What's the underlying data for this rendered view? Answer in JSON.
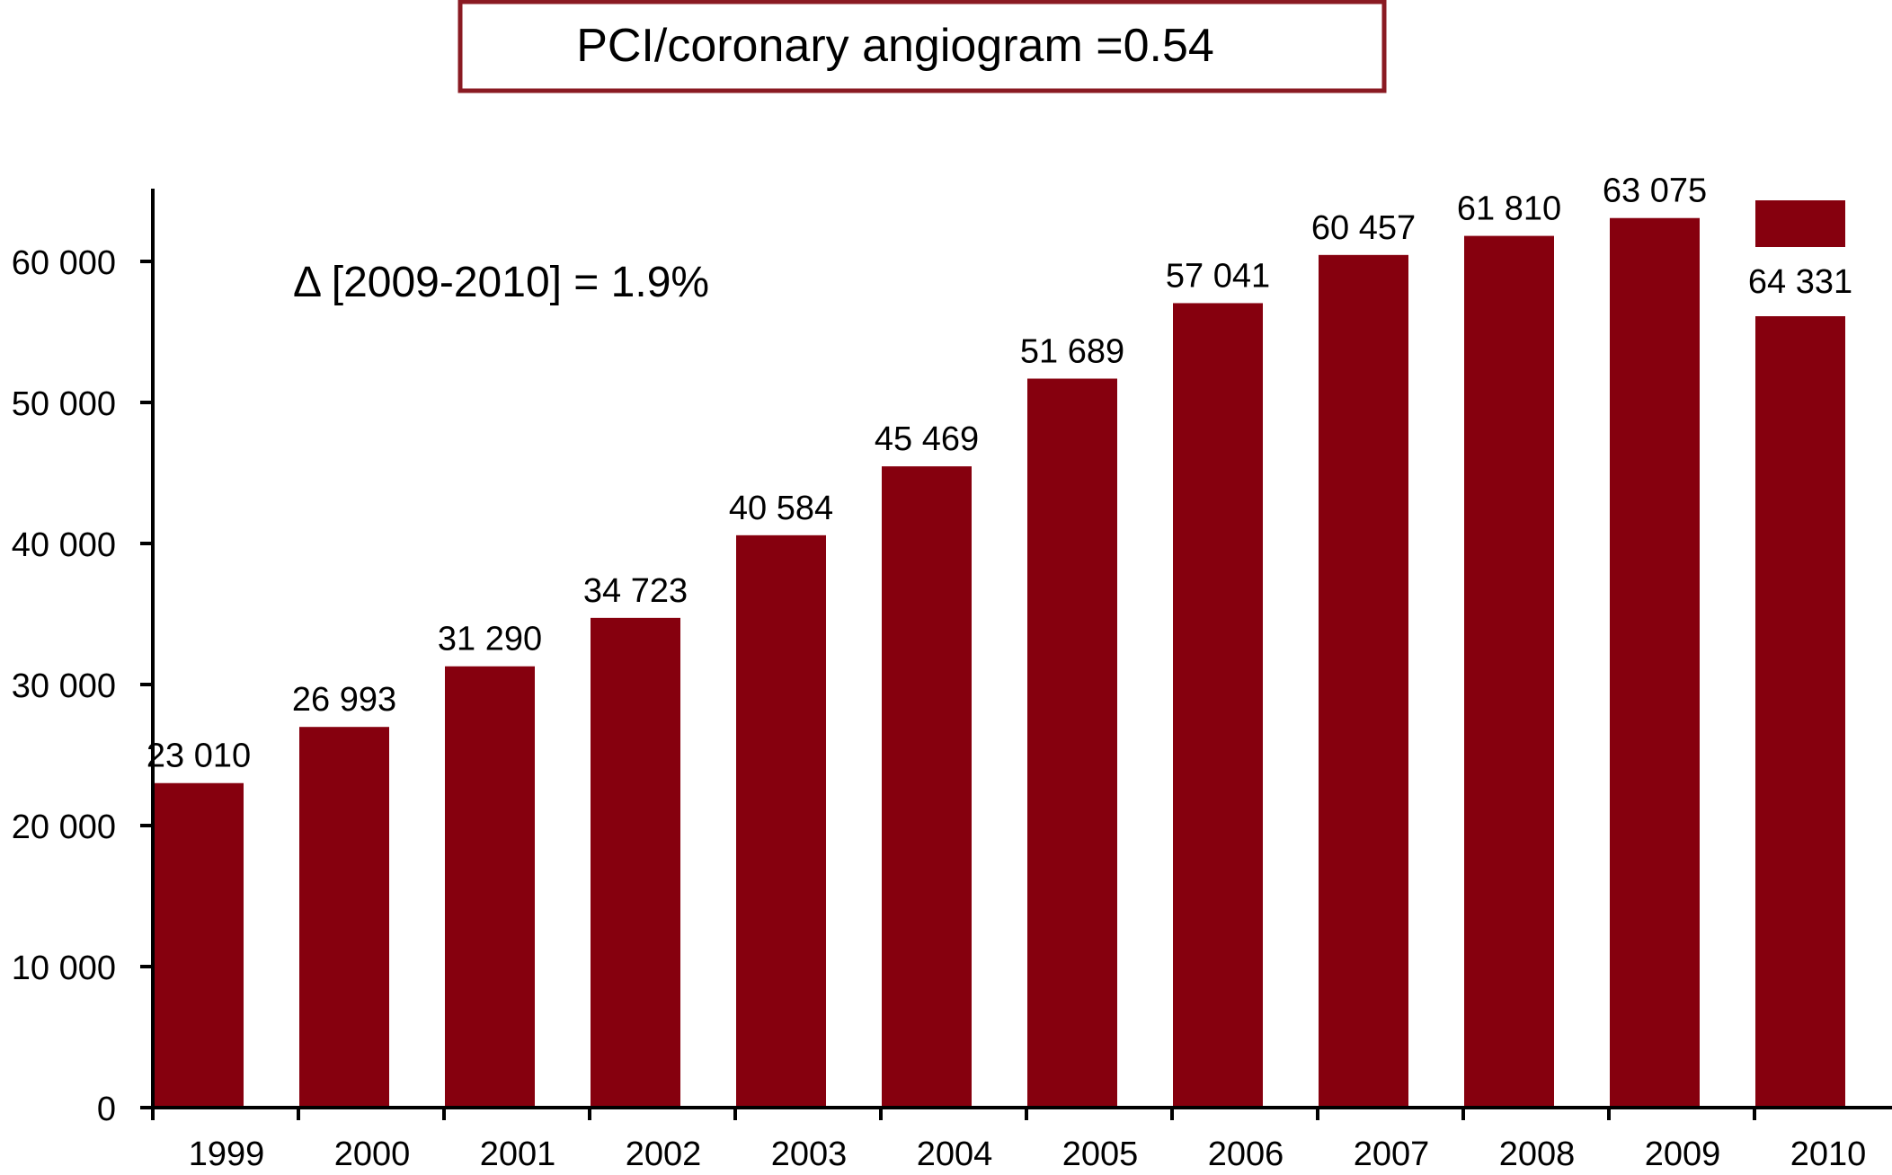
{
  "chart_data": {
    "type": "bar",
    "title": "PCI/coronary angiogram =0.54",
    "annotation": "Δ [2009-2010] = 1.9%",
    "xlabel": "",
    "ylabel": "",
    "categories": [
      "1999",
      "2000",
      "2001",
      "2002",
      "2003",
      "2004",
      "2005",
      "2006",
      "2007",
      "2008",
      "2009",
      "2010"
    ],
    "values": [
      23010,
      26993,
      31290,
      34723,
      40584,
      45469,
      51689,
      57041,
      60457,
      61810,
      63075,
      64331
    ],
    "value_labels": [
      "23 010",
      "26 993",
      "31 290",
      "34 723",
      "40 584",
      "45 469",
      "51 689",
      "57 041",
      "60 457",
      "61 810",
      "63 075",
      "64 331"
    ],
    "yticks": [
      0,
      10000,
      20000,
      30000,
      40000,
      50000,
      60000
    ],
    "ytick_labels": [
      "0",
      "10 000",
      "20 000",
      "30 000",
      "40 000",
      "50 000",
      "60 000"
    ],
    "ylim": [
      0,
      65000
    ],
    "grid": false,
    "bar_color": "#86000e",
    "title_border_color": "#8a1a22"
  }
}
